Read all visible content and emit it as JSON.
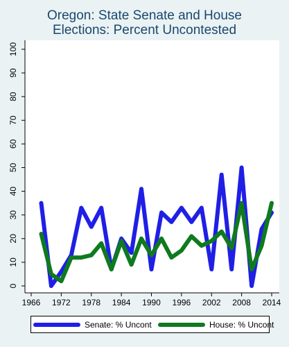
{
  "chart_data": {
    "type": "line",
    "title_lines": [
      "Oregon: State Senate and House",
      "Elections: Percent Uncontested"
    ],
    "xlabel": "",
    "ylabel": "",
    "xlim": [
      1966,
      2014
    ],
    "ylim": [
      0,
      100
    ],
    "x_ticks": [
      "1966",
      "1972",
      "1978",
      "1984",
      "1990",
      "1996",
      "2002",
      "2008",
      "2014"
    ],
    "y_ticks": [
      "0",
      "10",
      "20",
      "30",
      "40",
      "50",
      "60",
      "70",
      "80",
      "90",
      "100"
    ],
    "grid": false,
    "legend_position": "bottom",
    "series": [
      {
        "name": "Senate: % Uncont",
        "color": "#1f1fe6",
        "x": [
          1968,
          1970,
          1972,
          1974,
          1976,
          1978,
          1980,
          1982,
          1984,
          1986,
          1988,
          1990,
          1992,
          1994,
          1996,
          1998,
          2000,
          2002,
          2004,
          2006,
          2008,
          2010,
          2012,
          2014
        ],
        "y": [
          35,
          0,
          6,
          13,
          33,
          25,
          33,
          7,
          20,
          14,
          41,
          7,
          31,
          27,
          33,
          27,
          33,
          7,
          47,
          7,
          50,
          0,
          24,
          31
        ]
      },
      {
        "name": "House: % Uncont",
        "color": "#0f7a1e",
        "x": [
          1968,
          1970,
          1972,
          1974,
          1976,
          1978,
          1980,
          1982,
          1984,
          1986,
          1988,
          1990,
          1992,
          1994,
          1996,
          1998,
          2000,
          2002,
          2004,
          2006,
          2008,
          2010,
          2012,
          2014
        ],
        "y": [
          22,
          5,
          2,
          12,
          12,
          13,
          18,
          7,
          19,
          9,
          20,
          13,
          20,
          12,
          15,
          21,
          17,
          19,
          23,
          16,
          35,
          7,
          17,
          35
        ]
      }
    ]
  }
}
